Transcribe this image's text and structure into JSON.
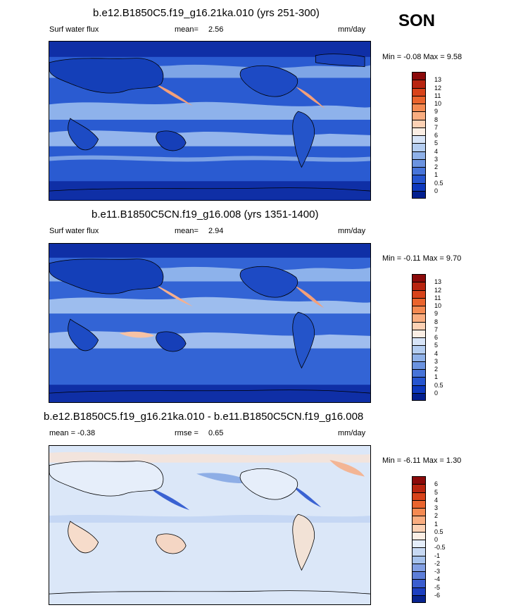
{
  "season": "SON",
  "panels": [
    {
      "title": "b.e12.B1850C5.f19_g16.21ka.010 (yrs 251-300)",
      "left_label": "Surf water flux",
      "center_label": "mean=",
      "center_value": "2.56",
      "right_label": "mm/day",
      "minmax": "Min = -0.08 Max = 9.58",
      "colorbar": {
        "labels": [
          "13",
          "12",
          "11",
          "10",
          "9",
          "8",
          "7",
          "6",
          "5",
          "4",
          "3",
          "2",
          "1",
          "0.5",
          "0"
        ],
        "colors": [
          "#8b0a0a",
          "#b8240f",
          "#d8431a",
          "#ea642d",
          "#f48a52",
          "#f9ad80",
          "#fcd1b4",
          "#fbeee4",
          "#d7e4f7",
          "#b4cdf0",
          "#8fb1e8",
          "#6b93e0",
          "#4774d9",
          "#2655cf",
          "#0d38bd",
          "#021f8f"
        ]
      }
    },
    {
      "title": "b.e11.B1850C5CN.f19_g16.008 (yrs 1351-1400)",
      "left_label": "Surf water flux",
      "center_label": "mean=",
      "center_value": "2.94",
      "right_label": "mm/day",
      "minmax": "Min = -0.11 Max = 9.70",
      "colorbar": {
        "labels": [
          "13",
          "12",
          "11",
          "10",
          "9",
          "8",
          "7",
          "6",
          "5",
          "4",
          "3",
          "2",
          "1",
          "0.5",
          "0"
        ],
        "colors": [
          "#8b0a0a",
          "#b8240f",
          "#d8431a",
          "#ea642d",
          "#f48a52",
          "#f9ad80",
          "#fcd1b4",
          "#fbeee4",
          "#d7e4f7",
          "#b4cdf0",
          "#8fb1e8",
          "#6b93e0",
          "#4774d9",
          "#2655cf",
          "#0d38bd",
          "#021f8f"
        ]
      }
    },
    {
      "title": "b.e12.B1850C5.f19_g16.21ka.010 - b.e11.B1850C5CN.f19_g16.008",
      "left_label": "mean = -0.38",
      "center_label": "rmse =",
      "center_value": "0.65",
      "right_label": "mm/day",
      "minmax": "Min = -6.11 Max = 1.30",
      "colorbar": {
        "labels": [
          "6",
          "5",
          "4",
          "3",
          "2",
          "1",
          "0.5",
          "0",
          "-0.5",
          "-1",
          "-2",
          "-3",
          "-4",
          "-5",
          "-6"
        ],
        "colors": [
          "#8b0a0a",
          "#b8240f",
          "#d8431a",
          "#ea642d",
          "#f48a52",
          "#f9ad80",
          "#fcd1b4",
          "#fbeee4",
          "#e4edf9",
          "#c7d9f3",
          "#a6c2ec",
          "#829fe3",
          "#5d7ed9",
          "#3a5dcf",
          "#1c3fc0",
          "#07238f"
        ]
      }
    }
  ]
}
